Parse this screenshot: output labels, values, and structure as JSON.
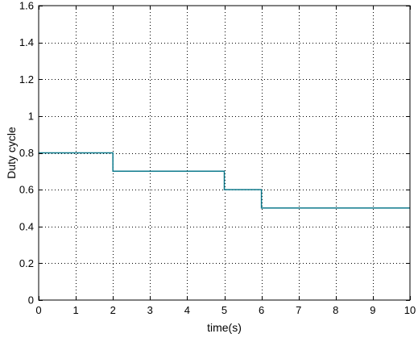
{
  "chart_data": {
    "type": "line",
    "title": "",
    "xlabel": "time(s)",
    "ylabel": "Duty cycle",
    "xlim": [
      0,
      10
    ],
    "ylim": [
      0,
      1.6
    ],
    "x_ticks": [
      "0",
      "1",
      "2",
      "3",
      "4",
      "5",
      "6",
      "7",
      "8",
      "9",
      "10"
    ],
    "y_ticks": [
      "0",
      "0.2",
      "0.4",
      "0.6",
      "0.8",
      "1",
      "1.2",
      "1.4",
      "1.6"
    ],
    "grid": true,
    "step": "post",
    "series": [
      {
        "color": "#0e7a8c",
        "x": [
          0,
          2,
          2,
          5,
          5,
          6,
          6,
          10
        ],
        "y": [
          0.8,
          0.8,
          0.7,
          0.7,
          0.6,
          0.6,
          0.5,
          0.5
        ]
      }
    ]
  }
}
